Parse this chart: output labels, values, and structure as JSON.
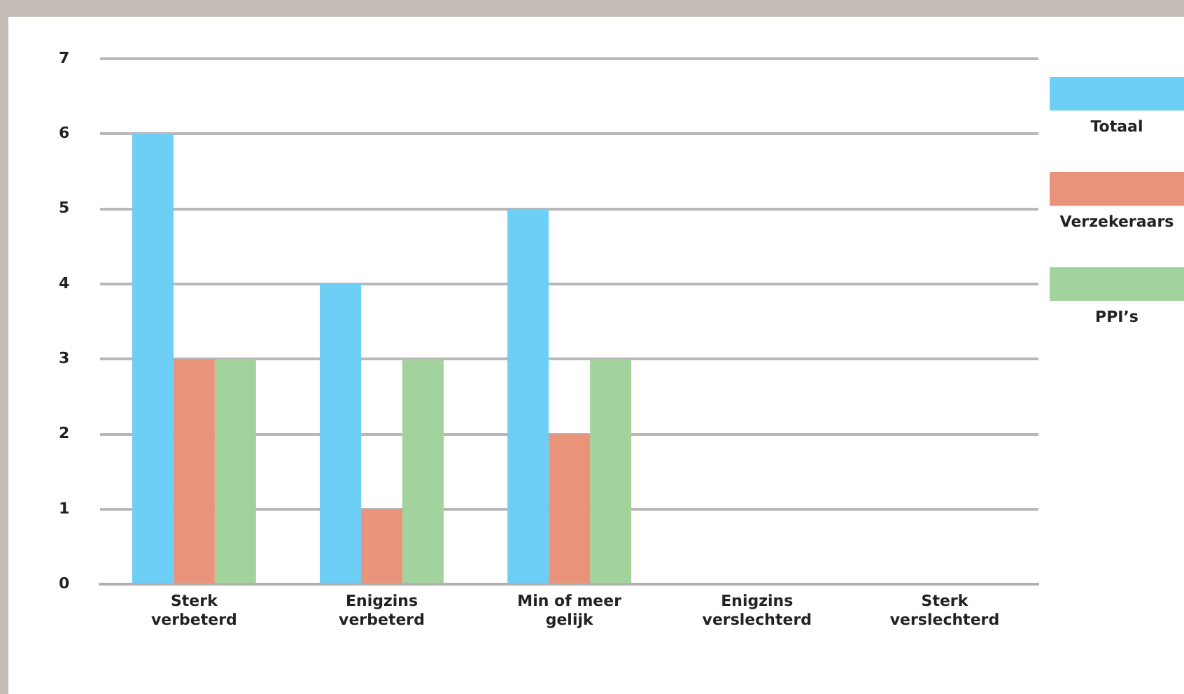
{
  "chart_data": {
    "type": "bar",
    "categories": [
      "Sterk verbeterd",
      "Enigzins verbeterd",
      "Min of meer gelijk",
      "Enigzins verslechterd",
      "Sterk verslechterd"
    ],
    "series": [
      {
        "name": "Totaal",
        "color": "#6dcff6",
        "values": [
          6,
          4,
          5,
          0,
          0
        ]
      },
      {
        "name": "Verzekeraars",
        "color": "#e8937a",
        "values": [
          3,
          1,
          2,
          0,
          0
        ]
      },
      {
        "name": "PPI’s",
        "color": "#a3d39c",
        "values": [
          3,
          3,
          3,
          0,
          0
        ]
      }
    ],
    "ylim": [
      0,
      7
    ],
    "yticks": [
      0,
      1,
      2,
      3,
      4,
      5,
      6,
      7
    ],
    "grid": "y",
    "legend": "right"
  }
}
